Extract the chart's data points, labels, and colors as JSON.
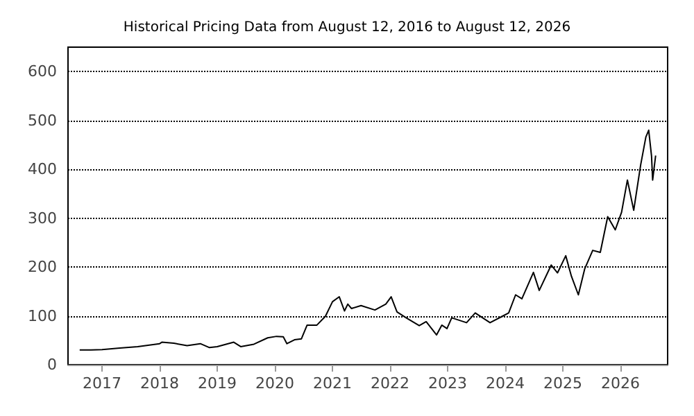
{
  "chart_data": {
    "type": "line",
    "title": "Historical Pricing Data from August 12, 2016 to August 12, 2026",
    "x": [
      "2016-08-12",
      "2016-10-22",
      "2017-01-01",
      "2017-04-23",
      "2017-08-15",
      "2018-01-01",
      "2018-01-15",
      "2018-04-01",
      "2018-06-24",
      "2018-09-16",
      "2018-11-13",
      "2019-01-01",
      "2019-04-16",
      "2019-05-30",
      "2019-08-22",
      "2019-11-17",
      "2020-01-12",
      "2020-02-24",
      "2020-03-18",
      "2020-05-05",
      "2020-06-18",
      "2020-07-24",
      "2020-09-24",
      "2020-11-17",
      "2021-01-01",
      "2021-02-13",
      "2021-03-18",
      "2021-04-08",
      "2021-05-01",
      "2021-07-01",
      "2021-09-27",
      "2021-12-05",
      "2022-01-08",
      "2022-02-14",
      "2022-04-13",
      "2022-07-05",
      "2022-08-18",
      "2022-10-23",
      "2022-11-25",
      "2022-12-28",
      "2023-01-27",
      "2023-05-01",
      "2023-06-25",
      "2023-09-27",
      "2023-12-13",
      "2024-01-23",
      "2024-03-07",
      "2024-04-16",
      "2024-06-28",
      "2024-08-04",
      "2024-10-19",
      "2024-11-28",
      "2025-01-19",
      "2025-02-24",
      "2025-04-09",
      "2025-05-19",
      "2025-07-09",
      "2025-08-26",
      "2025-10-12",
      "2025-11-29",
      "2026-01-08",
      "2026-02-14",
      "2026-03-26",
      "2026-05-09",
      "2026-06-11",
      "2026-06-29",
      "2026-07-17",
      "2026-07-24",
      "2026-08-12"
    ],
    "series": [
      {
        "color": "#000000",
        "values": [
          30,
          30,
          31,
          34,
          37,
          43,
          46,
          44,
          39,
          43,
          35,
          37,
          46,
          37,
          42,
          55,
          58,
          57,
          43,
          51,
          53,
          81,
          81,
          99,
          129,
          139,
          110,
          124,
          115,
          121,
          112,
          124,
          139,
          108,
          96,
          80,
          88,
          61,
          81,
          74,
          96,
          86,
          106,
          86,
          99,
          106,
          143,
          135,
          189,
          152,
          204,
          188,
          223,
          181,
          143,
          196,
          234,
          230,
          303,
          276,
          312,
          378,
          316,
          409,
          466,
          480,
          427,
          378,
          428
        ]
      }
    ],
    "xlim": [
      "2016-05-30",
      "2026-10-27"
    ],
    "xticks": [
      "2017",
      "2018",
      "2019",
      "2020",
      "2021",
      "2022",
      "2023",
      "2024",
      "2025",
      "2026"
    ],
    "ylim": [
      0,
      650
    ],
    "yticks": [
      0,
      100,
      200,
      300,
      400,
      500,
      600
    ],
    "grid": "y",
    "marker": "none"
  }
}
